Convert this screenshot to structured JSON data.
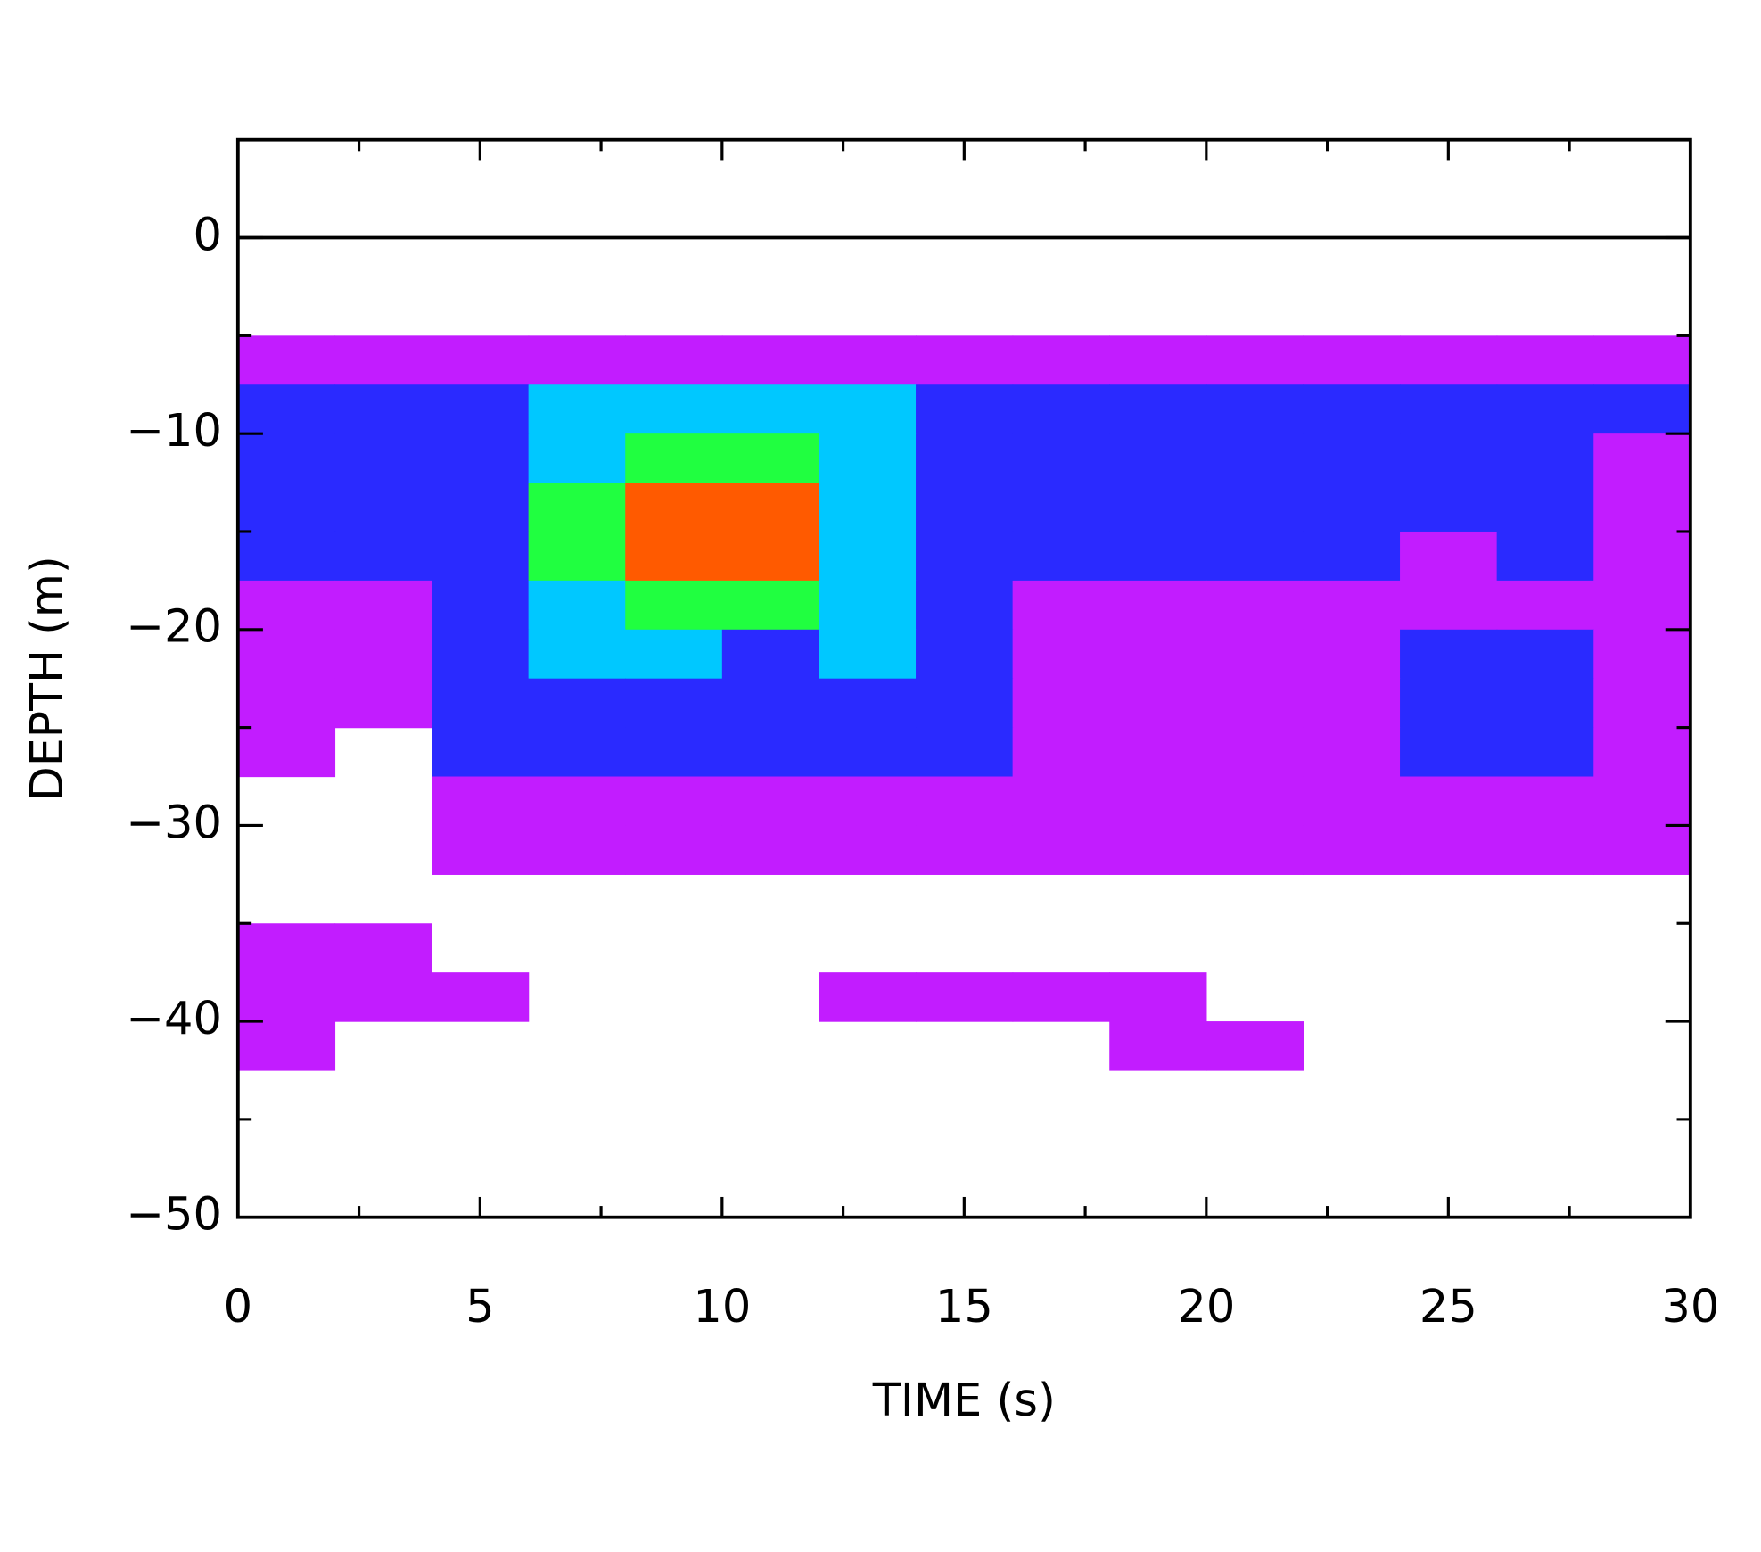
{
  "chart_data": {
    "type": "heatmap",
    "xlabel": "TIME (s)",
    "ylabel": "DEPTH (m)",
    "xlim": [
      0,
      30
    ],
    "ylim": [
      -50,
      5
    ],
    "xticks": [
      0,
      5,
      10,
      15,
      20,
      25,
      30
    ],
    "yticks": [
      {
        "value": -50,
        "label": "−50"
      },
      {
        "value": -40,
        "label": "−40"
      },
      {
        "value": -30,
        "label": "−30"
      },
      {
        "value": -20,
        "label": "−20"
      },
      {
        "value": -10,
        "label": "−10"
      },
      0
    ],
    "xminorticks": [
      2.5,
      7.5,
      12.5,
      17.5,
      22.5,
      27.5
    ],
    "yminorticks": [
      -45,
      -35,
      -25,
      -15,
      -5
    ],
    "hline": 0,
    "xbins": [
      0,
      2,
      4,
      6,
      8,
      10,
      12,
      14,
      16,
      18,
      20,
      22,
      24,
      26,
      28,
      30
    ],
    "ybins": [
      -5,
      -7.5,
      -10,
      -12.5,
      -15,
      -17.5,
      -20,
      -22.5,
      -25,
      -27.5,
      -30,
      -32.5,
      -35,
      -37.5,
      -40,
      -42.5,
      -45
    ],
    "colors": [
      "#ffffff",
      "#c21cff",
      "#2a2aff",
      "#00c8ff",
      "#20ff40",
      "#ff5a00"
    ],
    "values": [
      [
        1,
        1,
        1,
        1,
        1,
        1,
        1,
        1,
        1,
        1,
        1,
        1,
        1,
        1,
        1
      ],
      [
        2,
        2,
        2,
        3,
        3,
        3,
        3,
        2,
        2,
        2,
        2,
        2,
        2,
        2,
        2
      ],
      [
        2,
        2,
        2,
        3,
        4,
        4,
        3,
        2,
        2,
        2,
        2,
        2,
        2,
        2,
        1
      ],
      [
        2,
        2,
        2,
        4,
        5,
        5,
        3,
        2,
        2,
        2,
        2,
        2,
        2,
        2,
        1
      ],
      [
        2,
        2,
        2,
        4,
        5,
        5,
        3,
        2,
        2,
        2,
        2,
        2,
        1,
        2,
        1
      ],
      [
        1,
        1,
        2,
        3,
        4,
        4,
        3,
        2,
        1,
        1,
        1,
        1,
        1,
        1,
        1
      ],
      [
        1,
        1,
        2,
        3,
        3,
        2,
        3,
        2,
        1,
        1,
        1,
        1,
        2,
        2,
        1
      ],
      [
        1,
        1,
        2,
        2,
        2,
        2,
        2,
        2,
        1,
        1,
        1,
        1,
        2,
        2,
        1
      ],
      [
        1,
        0,
        2,
        2,
        2,
        2,
        2,
        2,
        1,
        1,
        1,
        1,
        2,
        2,
        1
      ],
      [
        0,
        0,
        1,
        1,
        1,
        1,
        1,
        1,
        1,
        1,
        1,
        1,
        1,
        1,
        1
      ],
      [
        0,
        0,
        1,
        1,
        1,
        1,
        1,
        1,
        1,
        1,
        1,
        1,
        1,
        1,
        1
      ],
      [
        0,
        0,
        0,
        0,
        0,
        0,
        0,
        0,
        0,
        0,
        0,
        0,
        0,
        0,
        0
      ],
      [
        1,
        1,
        0,
        0,
        0,
        0,
        0,
        0,
        0,
        0,
        0,
        0,
        0,
        0,
        0
      ],
      [
        1,
        1,
        1,
        0,
        0,
        0,
        1,
        1,
        1,
        1,
        0,
        0,
        0,
        0,
        0
      ],
      [
        1,
        0,
        0,
        0,
        0,
        0,
        0,
        0,
        0,
        1,
        1,
        0,
        0,
        0,
        0
      ],
      [
        0,
        0,
        0,
        0,
        0,
        0,
        0,
        0,
        0,
        0,
        0,
        0,
        0,
        0,
        0
      ]
    ]
  }
}
